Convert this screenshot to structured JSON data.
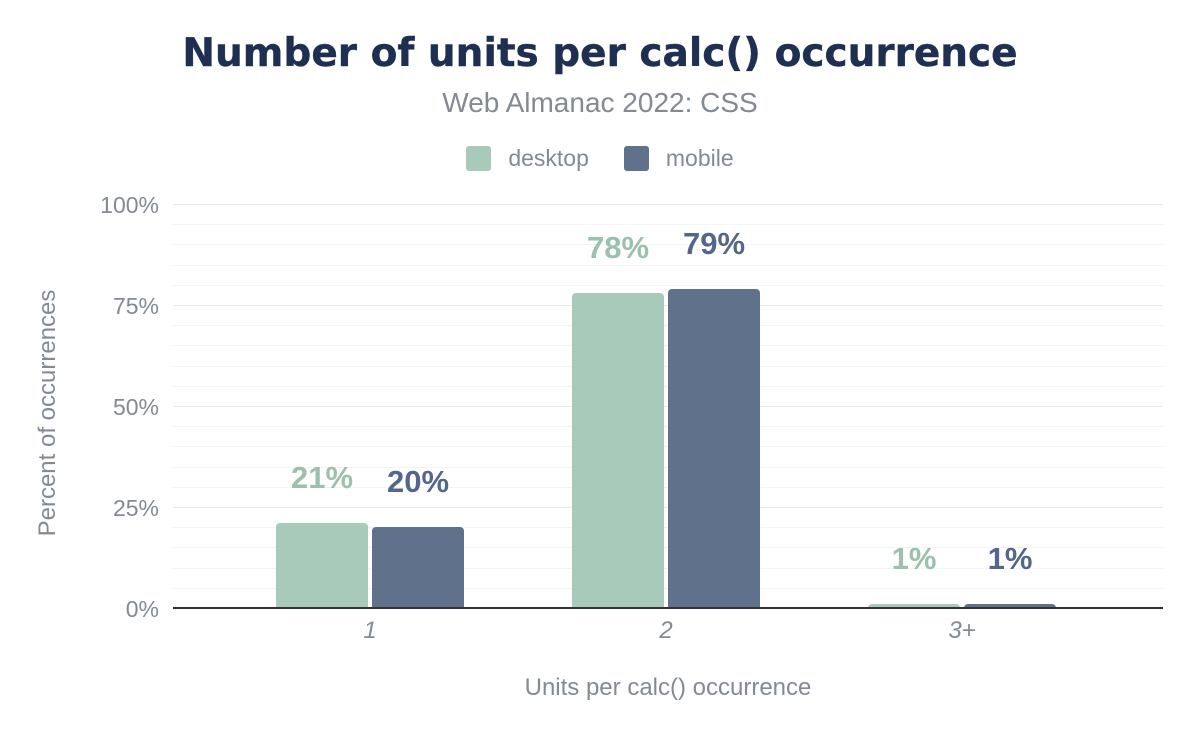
{
  "figure": {
    "background": "#ffffff",
    "title_color": "#1e2f52",
    "muted_text_color": "#848a92"
  },
  "chart_data": {
    "type": "bar",
    "title": "Number of units per calc() occurrence",
    "subtitle": "Web Almanac 2022: CSS",
    "xlabel": "Units per calc() occurrence",
    "ylabel": "Percent of occurrences",
    "categories": [
      "1",
      "2",
      "3+"
    ],
    "series": [
      {
        "name": "desktop",
        "color": "#a8cabb",
        "label_color": "#9cc0ae",
        "values": [
          21,
          78,
          1
        ],
        "labels": [
          "21%",
          "78%",
          "1%"
        ]
      },
      {
        "name": "mobile",
        "color": "#60718c",
        "label_color": "#54668a",
        "values": [
          20,
          79,
          1
        ],
        "labels": [
          "20%",
          "79%",
          "1%"
        ]
      }
    ],
    "ylim": [
      0,
      100
    ],
    "yticks": [
      0,
      25,
      50,
      75,
      100
    ],
    "ytick_labels": [
      "0%",
      "25%",
      "50%",
      "75%",
      "100%"
    ],
    "minor_tick_step": 5,
    "grid": true,
    "legend_position": "top"
  }
}
